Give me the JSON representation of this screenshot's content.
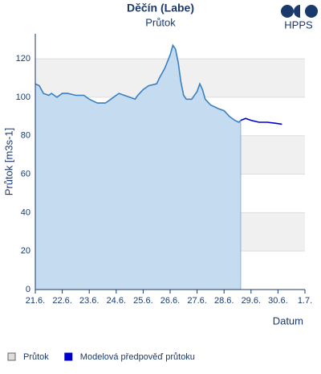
{
  "chart_data": {
    "type": "line",
    "title": "Děčín (Labe)",
    "subtitle": "Průtok",
    "brand": "HPPS",
    "y_label": "Průtok [m3s-1]",
    "x_label": "Datum",
    "xlim": [
      0,
      10
    ],
    "ylim": [
      0,
      133
    ],
    "xticks": [
      {
        "value": 0,
        "label": "21.6."
      },
      {
        "value": 1,
        "label": "22.6."
      },
      {
        "value": 2,
        "label": "23.6."
      },
      {
        "value": 3,
        "label": "24.6."
      },
      {
        "value": 4,
        "label": "25.6."
      },
      {
        "value": 5,
        "label": "26.6."
      },
      {
        "value": 6,
        "label": "27.6."
      },
      {
        "value": 7,
        "label": "28.6."
      },
      {
        "value": 8,
        "label": "29.6."
      },
      {
        "value": 9,
        "label": "30.6."
      },
      {
        "value": 10,
        "label": "1.7."
      }
    ],
    "yticks": [
      0,
      20,
      40,
      60,
      80,
      100,
      120
    ],
    "series": [
      {
        "name": "Průtok",
        "color": "#3a7fc1",
        "fill": "#c5dbf0",
        "area": true,
        "x": [
          0,
          0.15,
          0.3,
          0.5,
          0.6,
          0.8,
          1.0,
          1.2,
          1.5,
          1.8,
          2.0,
          2.3,
          2.6,
          2.8,
          3.0,
          3.1,
          3.3,
          3.5,
          3.7,
          3.8,
          4.0,
          4.2,
          4.5,
          4.6,
          4.8,
          5.0,
          5.1,
          5.2,
          5.3,
          5.4,
          5.5,
          5.6,
          5.8,
          6.0,
          6.1,
          6.2,
          6.3,
          6.5,
          6.8,
          7.0,
          7.2,
          7.4,
          7.55,
          7.62
        ],
        "values": [
          107,
          106,
          102,
          101,
          102,
          100,
          102,
          102,
          101,
          101,
          99,
          97,
          97,
          99,
          101,
          102,
          101,
          100,
          99,
          101,
          104,
          106,
          107,
          110,
          115,
          122,
          127,
          125,
          118,
          108,
          101,
          99,
          99,
          103,
          107,
          104,
          99,
          96,
          94,
          93,
          90,
          88,
          87,
          88
        ]
      },
      {
        "name": "Modelová předpověď průtoku",
        "color": "#0000cc",
        "area": false,
        "x": [
          7.62,
          7.8,
          8.0,
          8.3,
          8.6,
          8.9,
          9.15
        ],
        "values": [
          88,
          89,
          88,
          87,
          87,
          86.5,
          86
        ]
      }
    ]
  }
}
